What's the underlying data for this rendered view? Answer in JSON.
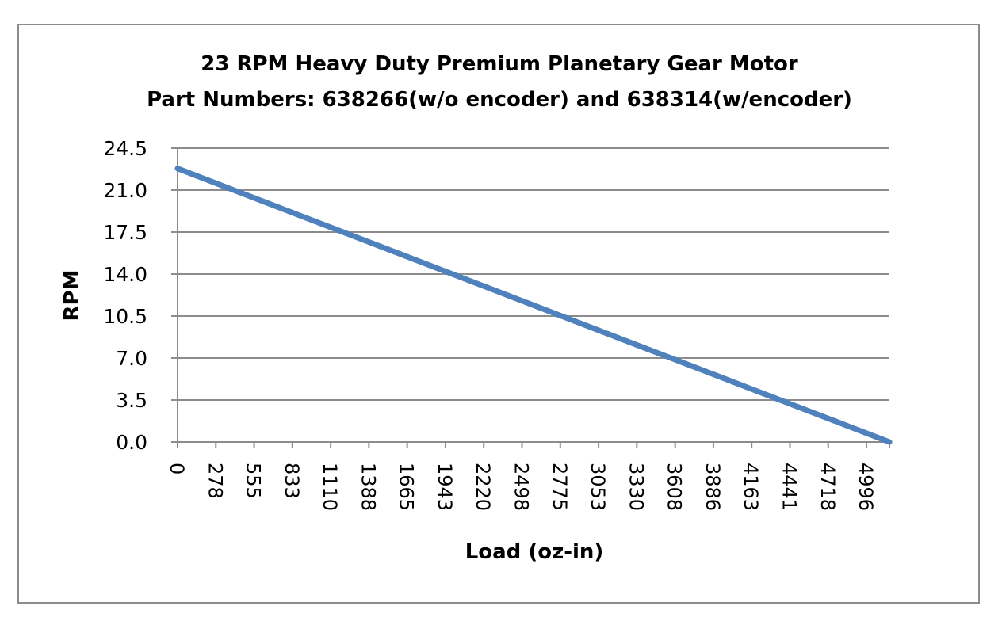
{
  "chart_data": {
    "type": "line",
    "title": "23 RPM Heavy Duty Premium Planetary Gear Motor",
    "subtitle": "Part Numbers: 638266(w/o encoder) and 638314(w/encoder)",
    "xlabel": "Load (oz-in)",
    "ylabel": "RPM",
    "categories": [
      "0",
      "278",
      "555",
      "833",
      "1110",
      "1388",
      "1665",
      "1943",
      "2220",
      "2498",
      "2775",
      "3053",
      "3330",
      "3608",
      "3886",
      "4163",
      "4441",
      "4718",
      "4996"
    ],
    "y_ticks": [
      "0.0",
      "3.5",
      "7.0",
      "10.5",
      "14.0",
      "17.5",
      "21.0",
      "24.5"
    ],
    "ylim": [
      0,
      24.5
    ],
    "grid": true,
    "legend": "none",
    "series": [
      {
        "color": "#4f81bd",
        "x": [
          0,
          5550
        ],
        "y": [
          22.8,
          0
        ]
      }
    ]
  }
}
